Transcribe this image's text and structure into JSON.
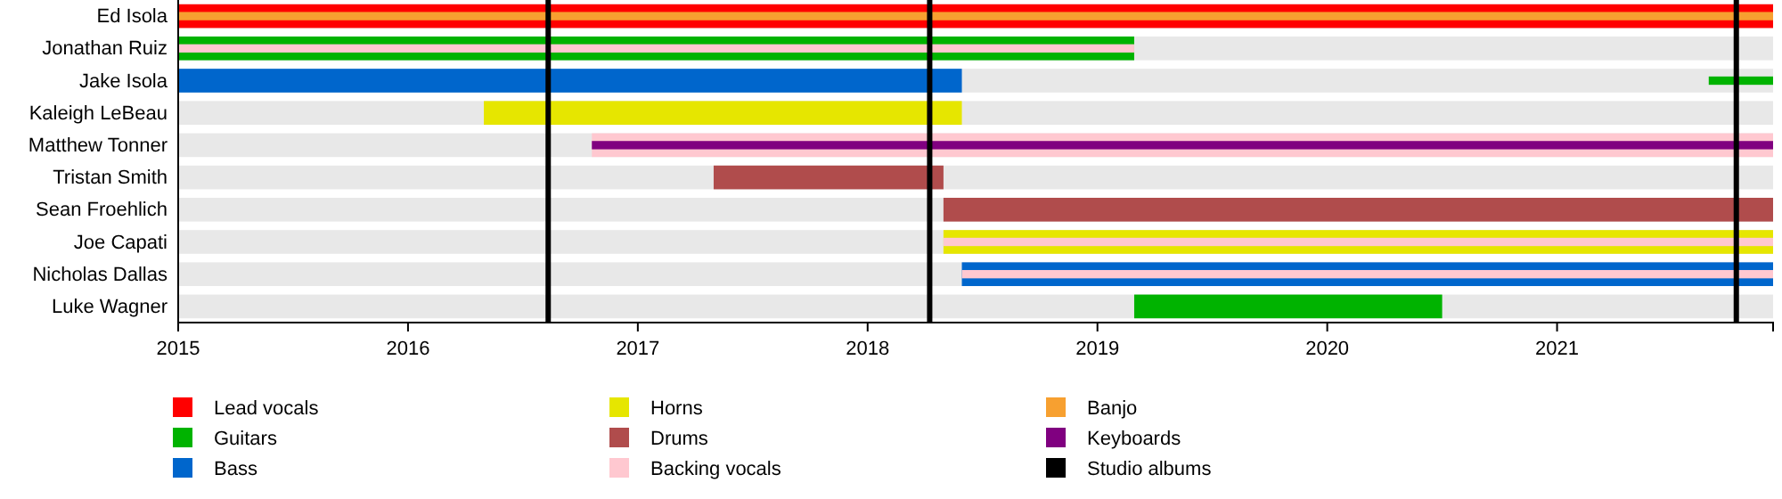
{
  "chart_data": {
    "type": "bar",
    "orientation": "horizontal",
    "legend": "bottom",
    "categories": [
      "Ed Isola",
      "Jonathan Ruiz",
      "Jake Isola",
      "Kaleigh LeBeau",
      "Matthew Tonner",
      "Tristan Smith",
      "Sean Froehlich",
      "Joe Capati",
      "Nicholas Dallas",
      "Luke Wagner"
    ],
    "xlim": [
      2015,
      2021.94
    ],
    "xticks": [
      2015,
      2016,
      2017,
      2018,
      2019,
      2020,
      2021
    ],
    "series": [
      {
        "name": "Lead vocals",
        "color": "#ff0000",
        "base": [
          2015,
          null,
          null,
          null,
          null,
          null,
          null,
          null,
          null,
          null
        ],
        "values": [
          6.94,
          null,
          null,
          null,
          null,
          null,
          null,
          null,
          null,
          null
        ]
      },
      {
        "name": "Guitars",
        "color": "#00b300",
        "base": [
          null,
          2015,
          2021.66,
          null,
          null,
          null,
          null,
          null,
          null,
          2019.16
        ],
        "values": [
          null,
          4.16,
          0.28,
          null,
          null,
          null,
          null,
          null,
          null,
          1.34
        ]
      },
      {
        "name": "Bass",
        "color": "#0066cc",
        "base": [
          null,
          null,
          2015,
          null,
          null,
          null,
          null,
          null,
          2018.41,
          null
        ],
        "values": [
          null,
          null,
          3.41,
          null,
          null,
          null,
          null,
          null,
          3.53,
          null
        ]
      },
      {
        "name": "Horns",
        "color": "#e6e600",
        "base": [
          null,
          null,
          null,
          2016.33,
          null,
          null,
          null,
          2018.33,
          null,
          null
        ],
        "values": [
          null,
          null,
          null,
          2.08,
          null,
          null,
          null,
          3.61,
          null,
          null
        ]
      },
      {
        "name": "Drums",
        "color": "#b04c4c",
        "base": [
          null,
          null,
          null,
          null,
          null,
          2017.33,
          2018.33,
          null,
          null,
          null
        ],
        "values": [
          null,
          null,
          null,
          null,
          null,
          1.0,
          3.61,
          null,
          null,
          null
        ]
      },
      {
        "name": "Backing vocals",
        "color": "#ffc8d0",
        "base": [
          null,
          2015,
          null,
          null,
          2016.8,
          null,
          null,
          2018.33,
          2018.41,
          null
        ],
        "values": [
          null,
          4.16,
          null,
          null,
          5.14,
          null,
          null,
          3.61,
          3.53,
          null
        ]
      },
      {
        "name": "Banjo",
        "color": "#f7a030",
        "base": [
          2015,
          null,
          null,
          null,
          null,
          null,
          null,
          null,
          null,
          null
        ],
        "values": [
          6.94,
          null,
          null,
          null,
          null,
          null,
          null,
          null,
          null,
          null
        ]
      },
      {
        "name": "Keyboards",
        "color": "#800080",
        "base": [
          null,
          null,
          null,
          null,
          2016.8,
          null,
          null,
          null,
          null,
          null
        ],
        "values": [
          null,
          null,
          null,
          null,
          5.14,
          null,
          null,
          null,
          null,
          null
        ]
      }
    ],
    "ref_lines": [
      {
        "axis": "x",
        "value": 2016.61,
        "label": "Studio albums",
        "color": "#000000"
      },
      {
        "axis": "x",
        "value": 2018.27,
        "color": "#000000"
      },
      {
        "axis": "x",
        "value": 2021.78,
        "color": "#000000"
      }
    ]
  }
}
